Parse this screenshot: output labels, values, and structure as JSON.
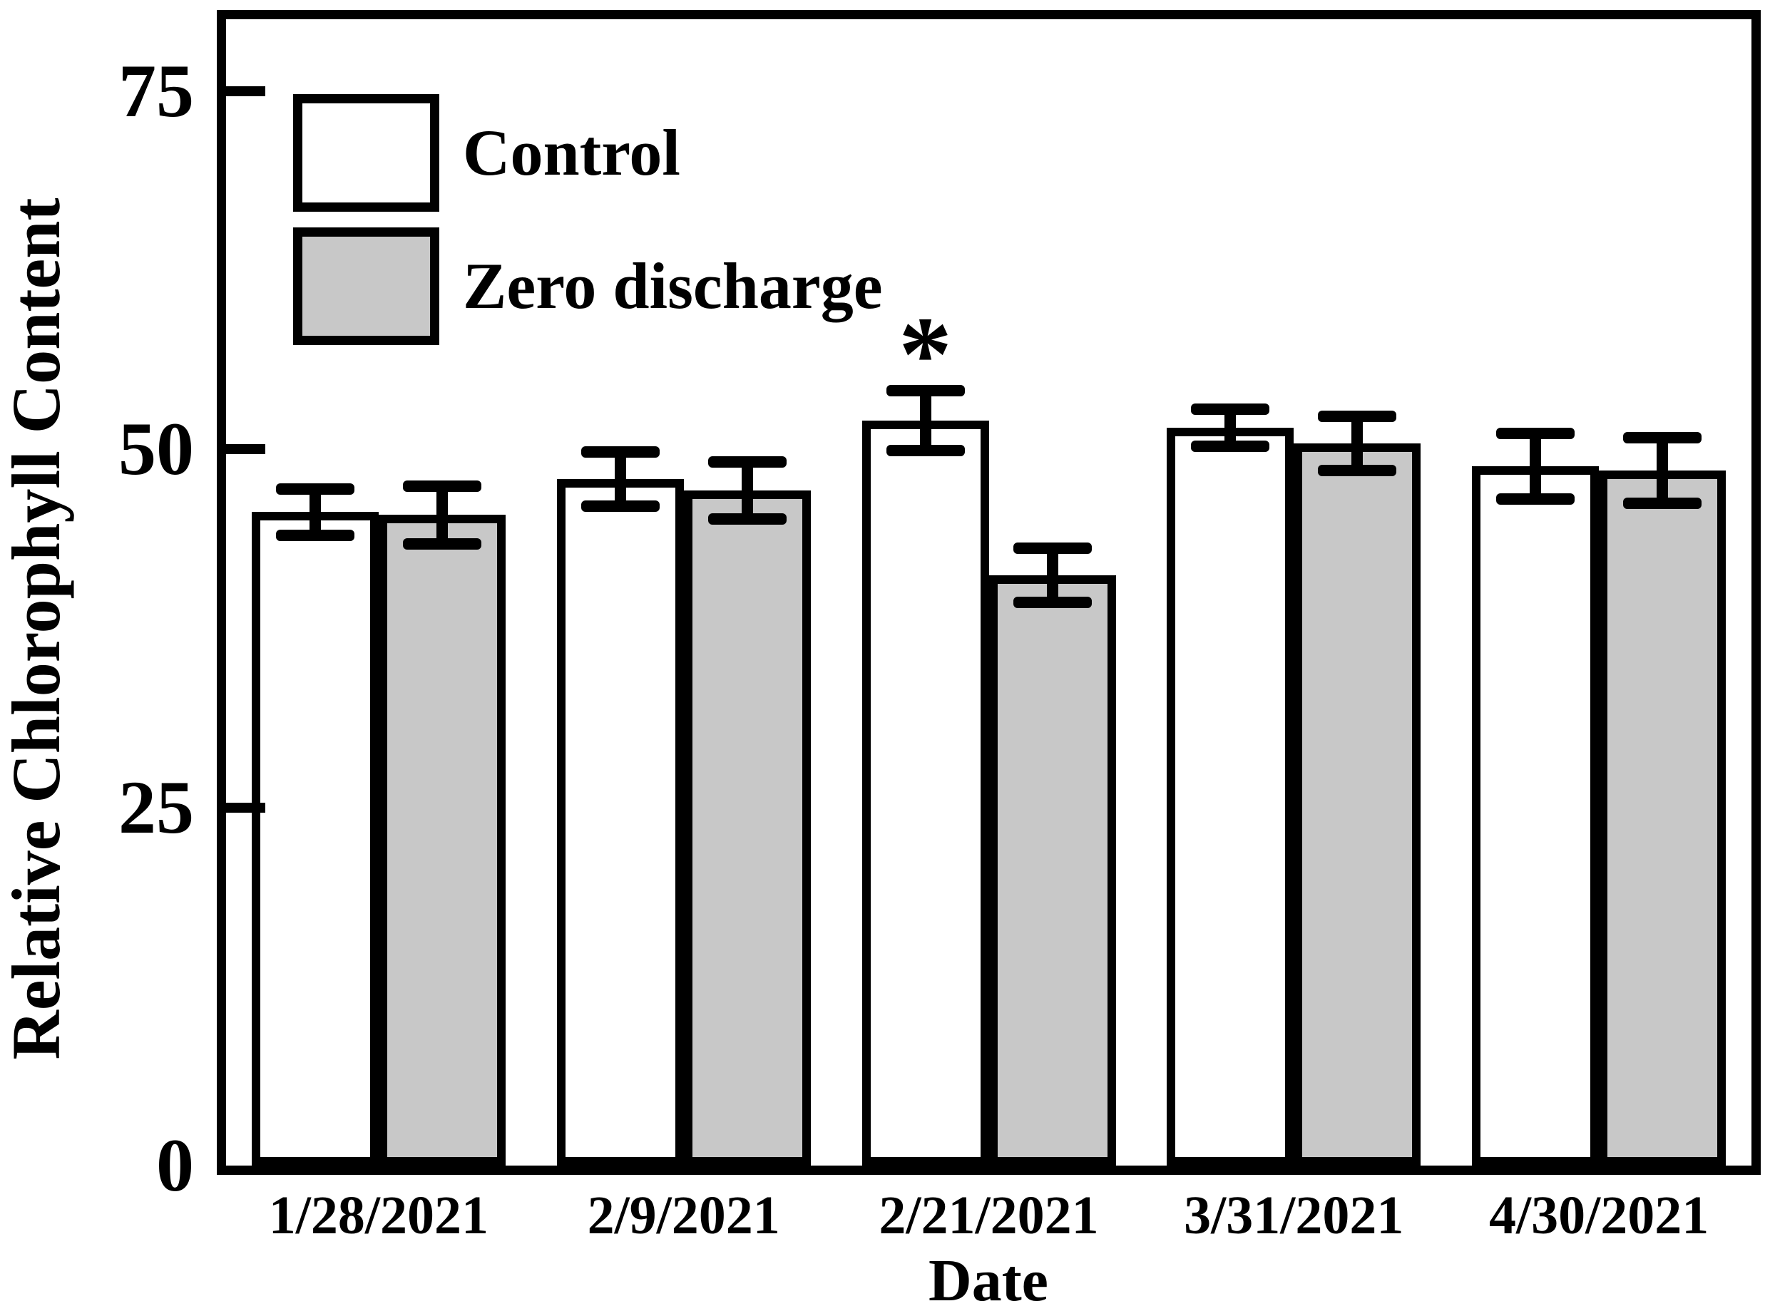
{
  "chart_data": {
    "type": "bar",
    "title": "",
    "xlabel": "Date",
    "ylabel": "Relative Chlorophyll Content",
    "categories": [
      "1/28/2021",
      "2/9/2021",
      "2/21/2021",
      "3/31/2021",
      "4/30/2021"
    ],
    "series": [
      {
        "name": "Control",
        "fill": "#ffffff",
        "values": [
          45.6,
          47.9,
          52.0,
          51.5,
          48.8
        ],
        "errors": [
          1.6,
          1.9,
          2.1,
          1.3,
          2.3
        ]
      },
      {
        "name": "Zero discharge",
        "fill": "#c8c8c8",
        "values": [
          45.4,
          47.1,
          41.2,
          50.4,
          48.5
        ],
        "errors": [
          2.0,
          2.0,
          1.9,
          1.9,
          2.3
        ]
      }
    ],
    "yticks": [
      0,
      25,
      50,
      75
    ],
    "ylim": [
      0,
      80
    ],
    "grid": false,
    "legend_position": "top-left",
    "error_bars": true,
    "annotations": [
      {
        "text": "*",
        "category_index": 2,
        "series_index": 0,
        "meaning": "significant difference"
      }
    ]
  },
  "colors": {
    "background": "#ffffff",
    "axis_and_text": "#000000",
    "bar_border": "#000000",
    "control_fill": "#ffffff",
    "zero_discharge_fill": "#c8c8c8"
  }
}
